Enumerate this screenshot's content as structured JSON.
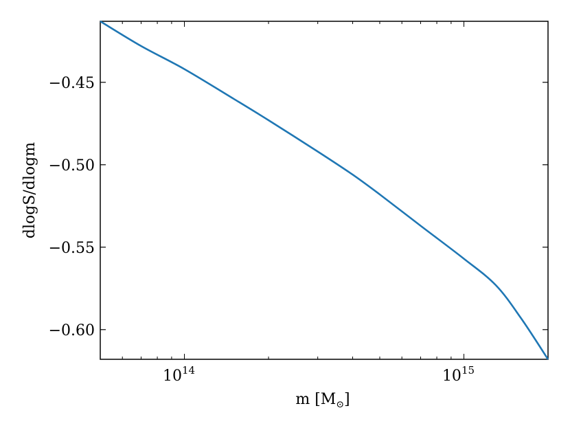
{
  "chart_data": {
    "type": "line",
    "xscale": "log",
    "xlabel": "m [M",
    "xlabel_sub": "⊙",
    "xlabel_close": "]",
    "ylabel": "dlogS/dlogm",
    "xlim": [
      50000000000000.0,
      2000000000000000.0
    ],
    "ylim": [
      -0.618,
      -0.413
    ],
    "x_major_ticks": [
      {
        "value": 100000000000000.0,
        "base": "10",
        "exp": "14"
      },
      {
        "value": 1000000000000000.0,
        "base": "10",
        "exp": "15"
      }
    ],
    "y_ticks": [
      {
        "value": -0.45,
        "label": "−0.45"
      },
      {
        "value": -0.5,
        "label": "−0.50"
      },
      {
        "value": -0.55,
        "label": "−0.55"
      },
      {
        "value": -0.6,
        "label": "−0.60"
      }
    ],
    "grid": false,
    "series": [
      {
        "color": "#1f77b4",
        "x": [
          50000000000000.0,
          70000000000000.0,
          100000000000000.0,
          150000000000000.0,
          200000000000000.0,
          300000000000000.0,
          400000000000000.0,
          500000000000000.0,
          700000000000000.0,
          1000000000000000.0,
          1300000000000000.0,
          1600000000000000.0,
          2000000000000000.0
        ],
        "y": [
          -0.413,
          -0.428,
          -0.442,
          -0.46,
          -0.473,
          -0.492,
          -0.506,
          -0.518,
          -0.537,
          -0.557,
          -0.573,
          -0.593,
          -0.618
        ]
      }
    ]
  }
}
